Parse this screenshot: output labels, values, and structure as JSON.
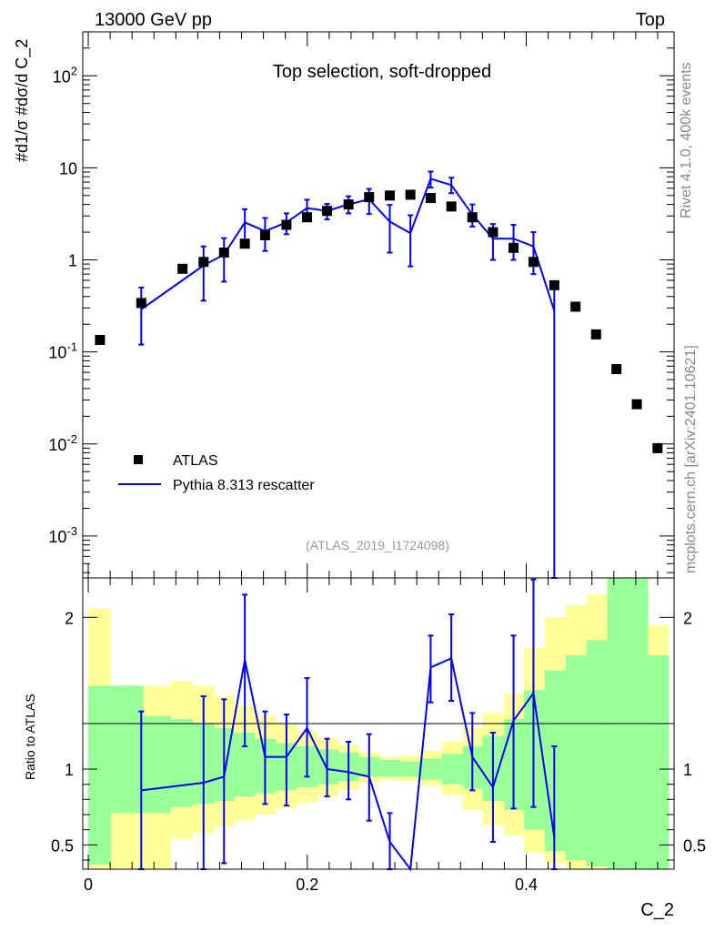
{
  "header": {
    "left": "13000 GeV pp",
    "right": "Top"
  },
  "side": {
    "top": "Rivet 4.1.0,  400k events",
    "bottom": "mcplots.cern.ch [arXiv:2401.10621]"
  },
  "colors": {
    "data": "#000000",
    "mc": "#0000ee",
    "band_inner": "#99ff99",
    "band_outer": "#ffff99",
    "ref_text": "#999999"
  },
  "chart_data": [
    {
      "type": "scatter",
      "panel": "main",
      "title": "Top selection, soft-dropped",
      "ylabel": "#d1/σ #dσ/d C_2",
      "yscale": "log",
      "ylim": [
        0.00035,
        300
      ],
      "xlim": [
        -0.005,
        0.535
      ],
      "y_ticks": [
        "10^-3",
        "10^-2",
        "10^-1",
        "1",
        "10",
        "10^2"
      ],
      "analysis": "(ATLAS_2019_I1724098)",
      "legend": {
        "position": "bottom-left",
        "entries": [
          "ATLAS",
          "Pythia 8.313 rescatter"
        ]
      },
      "series": [
        {
          "name": "ATLAS",
          "x": [
            0.0107,
            0.0484,
            0.0861,
            0.1053,
            0.124,
            0.143,
            0.1615,
            0.181,
            0.1998,
            0.2181,
            0.2377,
            0.2565,
            0.2754,
            0.2942,
            0.3127,
            0.3316,
            0.3508,
            0.3696,
            0.3884,
            0.4066,
            0.4256,
            0.445,
            0.4638,
            0.4824,
            0.501,
            0.5199
          ],
          "y": [
            0.135,
            0.34,
            0.8,
            0.95,
            1.2,
            1.5,
            1.85,
            2.4,
            2.9,
            3.4,
            4.0,
            4.8,
            5.0,
            5.1,
            4.7,
            3.8,
            2.9,
            2.0,
            1.35,
            0.95,
            0.53,
            0.31,
            0.155,
            0.065,
            0.027,
            0.009
          ]
        },
        {
          "name": "Pythia 8.313 rescatter",
          "x": [
            0.0484,
            0.1053,
            0.124,
            0.143,
            0.1615,
            0.181,
            0.1998,
            0.2181,
            0.2377,
            0.2565,
            0.2754,
            0.2942,
            0.3127,
            0.3316,
            0.3508,
            0.3696,
            0.3884,
            0.4066,
            0.4256
          ],
          "y": [
            0.29,
            0.87,
            1.14,
            2.55,
            2.05,
            2.55,
            3.65,
            3.4,
            4.0,
            4.55,
            2.6,
            1.95,
            7.6,
            6.5,
            3.1,
            1.7,
            1.7,
            1.4,
            0.28
          ],
          "ylow": [
            0.12,
            0.36,
            0.58,
            1.55,
            1.25,
            1.9,
            2.85,
            2.75,
            3.2,
            3.15,
            1.2,
            0.85,
            6.1,
            5.3,
            2.3,
            1.0,
            1.0,
            0.7,
            0.0001
          ],
          "yhigh": [
            0.5,
            1.4,
            1.72,
            3.55,
            2.85,
            3.2,
            4.5,
            4.05,
            4.9,
            5.9,
            3.95,
            3.05,
            9.1,
            7.8,
            4.0,
            2.45,
            2.4,
            2.0,
            0.56
          ]
        }
      ]
    },
    {
      "type": "line",
      "panel": "ratio",
      "xlabel": "C_2",
      "ylabel": "Ratio to ATLAS",
      "ylim": [
        0.34,
        2.26
      ],
      "y_ticks": [
        "0.5",
        "1",
        "2"
      ],
      "x_ticks": [
        "0",
        "0.2",
        "0.4"
      ],
      "bands": {
        "edges": [
          0,
          0.02,
          0.05,
          0.075,
          0.095,
          0.115,
          0.133,
          0.152,
          0.171,
          0.19,
          0.209,
          0.228,
          0.247,
          0.266,
          0.285,
          0.304,
          0.323,
          0.342,
          0.36,
          0.38,
          0.398,
          0.417,
          0.436,
          0.455,
          0.474,
          0.493,
          0.511,
          0.53
        ],
        "inner_low": [
          0.37,
          0.71,
          0.71,
          0.75,
          0.77,
          0.79,
          0.82,
          0.84,
          0.86,
          0.88,
          0.9,
          0.92,
          0.95,
          0.95,
          0.95,
          0.93,
          0.9,
          0.87,
          0.79,
          0.73,
          0.6,
          0.46,
          0.4,
          0.36,
          0.34,
          0.34,
          0.34
        ],
        "inner_high": [
          1.55,
          1.55,
          1.35,
          1.33,
          1.3,
          1.27,
          1.24,
          1.2,
          1.17,
          1.15,
          1.13,
          1.11,
          1.08,
          1.06,
          1.05,
          1.07,
          1.1,
          1.15,
          1.22,
          1.33,
          1.52,
          1.65,
          1.75,
          1.85,
          2.26,
          2.26,
          1.75
        ],
        "outer_low": [
          0.34,
          0.34,
          0.34,
          0.54,
          0.58,
          0.62,
          0.66,
          0.7,
          0.74,
          0.78,
          0.82,
          0.86,
          0.91,
          0.93,
          0.92,
          0.89,
          0.83,
          0.73,
          0.63,
          0.56,
          0.45,
          0.38,
          0.34,
          0.34,
          0.34,
          0.34,
          0.34
        ],
        "outer_high": [
          2.06,
          1.55,
          1.55,
          1.58,
          1.55,
          1.48,
          1.42,
          1.35,
          1.3,
          1.25,
          1.2,
          1.16,
          1.11,
          1.08,
          1.09,
          1.12,
          1.18,
          1.27,
          1.37,
          1.5,
          1.8,
          2.0,
          2.08,
          2.15,
          2.26,
          2.26,
          1.95
        ]
      },
      "series": [
        {
          "name": "Pythia 8.313 rescatter / ATLAS",
          "x": [
            0.0484,
            0.1053,
            0.124,
            0.143,
            0.1615,
            0.181,
            0.1998,
            0.2181,
            0.2377,
            0.2565,
            0.2754,
            0.2942,
            0.3127,
            0.3316,
            0.3508,
            0.3696,
            0.3884,
            0.4066,
            0.4256
          ],
          "y": [
            0.86,
            0.91,
            0.95,
            1.72,
            1.08,
            1.08,
            1.27,
            1.0,
            0.98,
            0.95,
            0.52,
            0.32,
            1.67,
            1.73,
            1.08,
            0.88,
            1.32,
            1.5,
            0.55
          ],
          "ylow": [
            0.34,
            0.34,
            0.38,
            1.15,
            0.77,
            0.76,
            0.95,
            0.82,
            0.8,
            0.66,
            0.34,
            0.34,
            1.44,
            1.45,
            0.86,
            0.52,
            0.74,
            0.75,
            0.34
          ],
          "yhigh": [
            1.38,
            1.48,
            1.46,
            2.15,
            1.38,
            1.36,
            1.6,
            1.2,
            1.18,
            1.23,
            0.71,
            0.34,
            1.88,
            2.02,
            1.37,
            1.24,
            1.88,
            2.25,
            1.15
          ]
        }
      ]
    }
  ]
}
